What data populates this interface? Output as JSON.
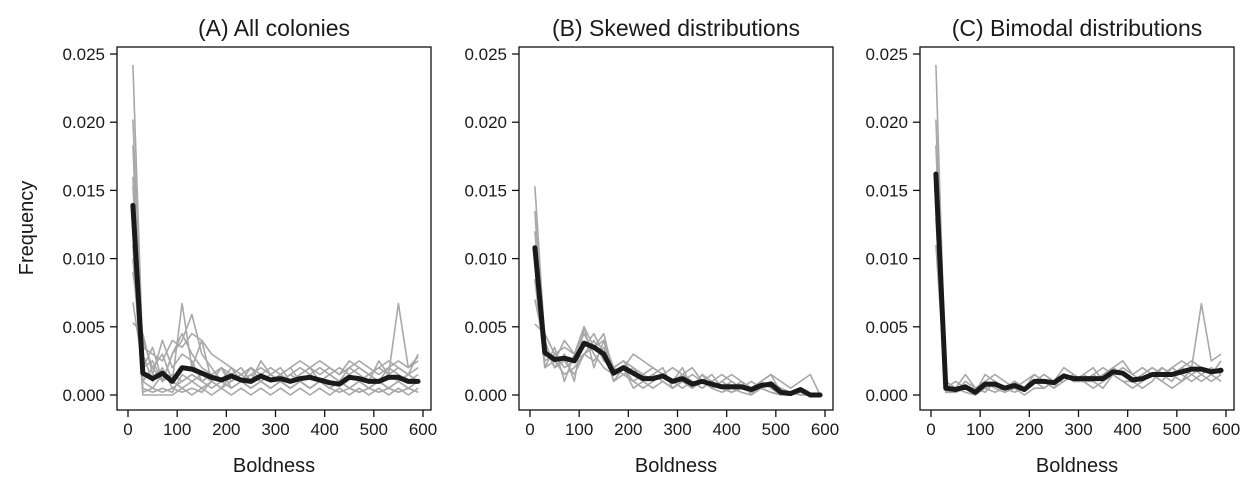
{
  "figure": {
    "ylabel": "Frequency"
  },
  "chart_data": [
    {
      "type": "line",
      "title": "(A) All colonies",
      "xlabel": "Boldness",
      "ylabel": "Frequency",
      "xlim": [
        0,
        600
      ],
      "ylim": [
        0,
        0.025
      ],
      "xticks": [
        0,
        100,
        200,
        300,
        400,
        500,
        600
      ],
      "yticks": [
        0.0,
        0.005,
        0.01,
        0.015,
        0.02,
        0.025
      ],
      "grid": false,
      "x": [
        10,
        30,
        50,
        70,
        90,
        110,
        130,
        150,
        170,
        190,
        210,
        230,
        250,
        270,
        290,
        310,
        330,
        350,
        370,
        390,
        410,
        430,
        450,
        470,
        490,
        510,
        530,
        550,
        570,
        590
      ],
      "mean": [
        0.0139,
        0.0016,
        0.0012,
        0.0016,
        0.001,
        0.002,
        0.0019,
        0.0016,
        0.0013,
        0.0011,
        0.0014,
        0.0011,
        0.001,
        0.0014,
        0.0011,
        0.0012,
        0.001,
        0.0012,
        0.0013,
        0.0011,
        0.0009,
        0.0008,
        0.0013,
        0.0012,
        0.001,
        0.001,
        0.0013,
        0.0013,
        0.001,
        0.001
      ],
      "colonies": [
        [
          0.0242,
          0.003,
          0.001,
          0.002,
          0.0005,
          0.001,
          0.0015,
          0.001,
          0.0005,
          0.001,
          0.0015,
          0.001,
          0.0005,
          0.001,
          0.0015,
          0.001,
          0.0005,
          0.001,
          0.0015,
          0.001,
          0.0005,
          0.001,
          0.0015,
          0.001,
          0.0005,
          0.001,
          0.002,
          0.0015,
          0.001,
          0.0015
        ],
        [
          0.0202,
          0.002,
          0.0035,
          0.001,
          0.003,
          0.0045,
          0.003,
          0.002,
          0.0015,
          0.002,
          0.001,
          0.0015,
          0.002,
          0.0015,
          0.001,
          0.0015,
          0.002,
          0.001,
          0.0015,
          0.002,
          0.0015,
          0.001,
          0.0015,
          0.002,
          0.0015,
          0.001,
          0.0015,
          0.002,
          0.0015,
          0.001
        ],
        [
          0.0183,
          0.001,
          0.0005,
          0.0015,
          0.001,
          0.0005,
          0.001,
          0.0015,
          0.001,
          0.0005,
          0.0015,
          0.002,
          0.001,
          0.0025,
          0.0015,
          0.002,
          0.001,
          0.0015,
          0.002,
          0.001,
          0.0015,
          0.001,
          0.002,
          0.0015,
          0.001,
          0.0025,
          0.0015,
          0.0067,
          0.002,
          0.0025
        ],
        [
          0.0153,
          0.004,
          0.002,
          0.003,
          0.001,
          0.0067,
          0.002,
          0.004,
          0.001,
          0.002,
          0.0005,
          0.001,
          0.0015,
          0.001,
          0.0005,
          0.001,
          0.0015,
          0.001,
          0.0005,
          0.001,
          0.0015,
          0.001,
          0.0005,
          0.001,
          0.0015,
          0.001,
          0.0005,
          0.001,
          0.0015,
          0.001
        ],
        [
          0.01,
          0.0005,
          0.0002,
          0.0005,
          0.0002,
          0.0015,
          0.001,
          0.0005,
          0.001,
          0.002,
          0.0015,
          0.001,
          0.002,
          0.0015,
          0.001,
          0.0015,
          0.002,
          0.0025,
          0.002,
          0.0015,
          0.002,
          0.0015,
          0.0025,
          0.002,
          0.0015,
          0.002,
          0.0025,
          0.002,
          0.0015,
          0.002
        ],
        [
          0.0068,
          0.002,
          0.0025,
          0.001,
          0.003,
          0.004,
          0.0059,
          0.003,
          0.002,
          0.001,
          0.002,
          0.001,
          0.0005,
          0.001,
          0.0005,
          0.001,
          0.0005,
          0.001,
          0.0005,
          0.001,
          0.0005,
          0.001,
          0.0005,
          0.001,
          0.0005,
          0.001,
          0.0005,
          0.001,
          0.0005,
          0.001
        ],
        [
          0.0053,
          0.0045,
          0.0015,
          0.004,
          0.002,
          0.003,
          0.0025,
          0.001,
          0.0015,
          0.001,
          0.0005,
          0.001,
          0.0015,
          0.001,
          0.0005,
          0.001,
          0.0005,
          0.001,
          0.0005,
          0.001,
          0.0005,
          0.001,
          0.0005,
          0.0002,
          0.0005,
          0.0002,
          0.0005,
          0.0002,
          0.0005,
          0.0002
        ],
        [
          0.012,
          0.0002,
          0.0005,
          0.0002,
          0.0005,
          0.0002,
          0.0005,
          0.0002,
          0.001,
          0.0005,
          0.001,
          0.0015,
          0.001,
          0.0015,
          0.002,
          0.0015,
          0.001,
          0.0015,
          0.002,
          0.0025,
          0.002,
          0.0015,
          0.002,
          0.0025,
          0.002,
          0.0015,
          0.002,
          0.0025,
          0.002,
          0.0028
        ],
        [
          0.009,
          0.0035,
          0.003,
          0.0025,
          0.004,
          0.0035,
          0.0045,
          0.004,
          0.003,
          0.0025,
          0.002,
          0.0015,
          0.002,
          0.001,
          0.0015,
          0.001,
          0.0015,
          0.001,
          0.0005,
          0.001,
          0.0005,
          0.0002,
          0.0005,
          0.0002,
          0.0005,
          0.0002,
          0.0005,
          0.0002,
          0.0005,
          0.0002
        ],
        [
          0.016,
          0.001,
          0.002,
          0.001,
          0.0015,
          0.001,
          0.0015,
          0.001,
          0.0015,
          0.001,
          0.0015,
          0.001,
          0.0015,
          0.002,
          0.0015,
          0.001,
          0.0015,
          0.002,
          0.0015,
          0.001,
          0.0015,
          0.002,
          0.0015,
          0.001,
          0.0015,
          0.002,
          0.0015,
          0.001,
          0.0015,
          0.003
        ],
        [
          0.011,
          0.0,
          0.0,
          0.0,
          0.0,
          0.0005,
          0.0,
          0.0005,
          0.0,
          0.0005,
          0.0,
          0.0005,
          0.0,
          0.0005,
          0.0,
          0.0005,
          0.0,
          0.0005,
          0.0,
          0.0005,
          0.0,
          0.0005,
          0.0,
          0.0005,
          0.0,
          0.0005,
          0.0,
          0.0005,
          0.0,
          0.0005
        ]
      ]
    },
    {
      "type": "line",
      "title": "(B) Skewed distributions",
      "xlabel": "Boldness",
      "xlim": [
        0,
        600
      ],
      "ylim": [
        0,
        0.025
      ],
      "xticks": [
        0,
        100,
        200,
        300,
        400,
        500,
        600
      ],
      "yticks": [
        0.0,
        0.005,
        0.01,
        0.015,
        0.02,
        0.025
      ],
      "grid": false,
      "x": [
        10,
        30,
        50,
        70,
        90,
        110,
        130,
        150,
        170,
        190,
        210,
        230,
        250,
        270,
        290,
        310,
        330,
        350,
        370,
        390,
        410,
        430,
        450,
        470,
        490,
        510,
        530,
        550,
        570,
        590
      ],
      "mean": [
        0.0108,
        0.0031,
        0.0026,
        0.0027,
        0.0025,
        0.0038,
        0.0035,
        0.003,
        0.0016,
        0.002,
        0.0016,
        0.0012,
        0.0012,
        0.0014,
        0.001,
        0.0012,
        0.0008,
        0.001,
        0.0008,
        0.0006,
        0.0006,
        0.0006,
        0.0004,
        0.0007,
        0.0008,
        0.0002,
        0.0001,
        0.0004,
        0.0,
        0.0
      ],
      "colonies": [
        [
          0.0153,
          0.004,
          0.002,
          0.003,
          0.001,
          0.005,
          0.002,
          0.004,
          0.001,
          0.002,
          0.0005,
          0.001,
          0.0015,
          0.001,
          0.0005,
          0.001,
          0.0015,
          0.001,
          0.0005,
          0.001,
          0.0015,
          0.001,
          0.0005,
          0.001,
          0.0015,
          0.001,
          0.0005,
          0.001,
          0.0015,
          0.0
        ],
        [
          0.0135,
          0.002,
          0.0035,
          0.001,
          0.003,
          0.0045,
          0.003,
          0.002,
          0.0015,
          0.002,
          0.001,
          0.0015,
          0.002,
          0.0015,
          0.001,
          0.0015,
          0.002,
          0.001,
          0.0015,
          0.0005,
          0.001,
          0.0005,
          0.0002,
          0.0005,
          0.0002,
          0.0,
          0.0002,
          0.0,
          0.0,
          0.0
        ],
        [
          0.012,
          0.003,
          0.0025,
          0.004,
          0.003,
          0.0035,
          0.0045,
          0.003,
          0.002,
          0.0025,
          0.002,
          0.0015,
          0.001,
          0.0015,
          0.001,
          0.0005,
          0.001,
          0.0005,
          0.001,
          0.0005,
          0.0002,
          0.0005,
          0.0002,
          0.0005,
          0.001,
          0.0002,
          0.0,
          0.0005,
          0.0,
          0.0
        ],
        [
          0.01,
          0.0025,
          0.003,
          0.002,
          0.0025,
          0.003,
          0.0035,
          0.0045,
          0.0015,
          0.002,
          0.003,
          0.0025,
          0.002,
          0.0015,
          0.002,
          0.0015,
          0.001,
          0.0005,
          0.001,
          0.0015,
          0.001,
          0.0005,
          0.001,
          0.0005,
          0.001,
          0.0005,
          0.0002,
          0.0005,
          0.0,
          0.0
        ],
        [
          0.007,
          0.0035,
          0.002,
          0.0025,
          0.0015,
          0.003,
          0.004,
          0.0025,
          0.002,
          0.0015,
          0.001,
          0.0005,
          0.001,
          0.0015,
          0.001,
          0.002,
          0.0005,
          0.0015,
          0.0005,
          0.001,
          0.0005,
          0.001,
          0.0,
          0.001,
          0.0005,
          0.0,
          0.0002,
          0.0,
          0.0,
          0.0
        ],
        [
          0.0052,
          0.0045,
          0.003,
          0.0035,
          0.003,
          0.005,
          0.0035,
          0.004,
          0.002,
          0.0025,
          0.0015,
          0.001,
          0.0005,
          0.001,
          0.0005,
          0.001,
          0.0005,
          0.0015,
          0.001,
          0.0005,
          0.0002,
          0.0005,
          0.0005,
          0.001,
          0.0015,
          0.0002,
          0.0,
          0.0005,
          0.0,
          0.0
        ],
        [
          0.0085,
          0.002,
          0.0025,
          0.0015,
          0.002,
          0.003,
          0.0025,
          0.0035,
          0.001,
          0.0015,
          0.002,
          0.001,
          0.0015,
          0.002,
          0.0005,
          0.001,
          0.0005,
          0.001,
          0.0005,
          0.0002,
          0.0005,
          0.0002,
          0.0,
          0.0005,
          0.0002,
          0.0,
          0.0,
          0.0002,
          0.0,
          0.0
        ]
      ]
    },
    {
      "type": "line",
      "title": "(C) Bimodal distributions",
      "xlabel": "Boldness",
      "xlim": [
        0,
        600
      ],
      "ylim": [
        0,
        0.025
      ],
      "xticks": [
        0,
        100,
        200,
        300,
        400,
        500,
        600
      ],
      "yticks": [
        0.0,
        0.005,
        0.01,
        0.015,
        0.02,
        0.025
      ],
      "grid": false,
      "x": [
        10,
        30,
        50,
        70,
        90,
        110,
        130,
        150,
        170,
        190,
        210,
        230,
        250,
        270,
        290,
        310,
        330,
        350,
        370,
        390,
        410,
        430,
        450,
        470,
        490,
        510,
        530,
        550,
        570,
        590
      ],
      "mean": [
        0.0162,
        0.0005,
        0.0004,
        0.0006,
        0.0002,
        0.0008,
        0.0008,
        0.0005,
        0.0007,
        0.0004,
        0.001,
        0.001,
        0.0009,
        0.0014,
        0.0012,
        0.0012,
        0.0012,
        0.0012,
        0.0017,
        0.0016,
        0.0011,
        0.0012,
        0.0015,
        0.0015,
        0.0015,
        0.0017,
        0.0019,
        0.0019,
        0.0017,
        0.0018
      ],
      "colonies": [
        [
          0.0242,
          0.001,
          0.0005,
          0.0015,
          0.0005,
          0.001,
          0.0015,
          0.001,
          0.0005,
          0.001,
          0.0015,
          0.001,
          0.0005,
          0.001,
          0.0015,
          0.001,
          0.0005,
          0.001,
          0.0015,
          0.001,
          0.0005,
          0.001,
          0.0015,
          0.001,
          0.0005,
          0.001,
          0.002,
          0.0015,
          0.001,
          0.0015
        ],
        [
          0.0202,
          0.0005,
          0.001,
          0.0005,
          0.0002,
          0.0015,
          0.001,
          0.0005,
          0.001,
          0.0005,
          0.001,
          0.0015,
          0.001,
          0.002,
          0.0015,
          0.001,
          0.0015,
          0.002,
          0.0015,
          0.002,
          0.0015,
          0.001,
          0.0015,
          0.002,
          0.0015,
          0.002,
          0.0025,
          0.002,
          0.0015,
          0.002
        ],
        [
          0.0183,
          0.0002,
          0.0005,
          0.0002,
          0.0,
          0.0005,
          0.0002,
          0.0005,
          0.001,
          0.0005,
          0.001,
          0.0005,
          0.001,
          0.0015,
          0.001,
          0.0015,
          0.001,
          0.0015,
          0.002,
          0.0015,
          0.001,
          0.0015,
          0.002,
          0.0015,
          0.002,
          0.0025,
          0.002,
          0.0067,
          0.0025,
          0.003
        ],
        [
          0.013,
          0.0005,
          0.0002,
          0.001,
          0.0005,
          0.0002,
          0.001,
          0.0005,
          0.0002,
          0.0005,
          0.001,
          0.0015,
          0.001,
          0.0015,
          0.001,
          0.0015,
          0.002,
          0.001,
          0.002,
          0.0025,
          0.0015,
          0.002,
          0.0015,
          0.001,
          0.002,
          0.0015,
          0.001,
          0.0015,
          0.002,
          0.0015
        ],
        [
          0.011,
          0.0002,
          0.0002,
          0.0005,
          0.0,
          0.001,
          0.0005,
          0.0002,
          0.0005,
          0.0,
          0.0005,
          0.0005,
          0.001,
          0.001,
          0.0015,
          0.001,
          0.001,
          0.0005,
          0.0015,
          0.001,
          0.001,
          0.0005,
          0.001,
          0.002,
          0.0015,
          0.001,
          0.0015,
          0.001,
          0.0015,
          0.001
        ],
        [
          0.015,
          0.0005,
          0.0002,
          0.0005,
          0.0002,
          0.0005,
          0.001,
          0.0005,
          0.001,
          0.0005,
          0.0015,
          0.001,
          0.0005,
          0.0015,
          0.001,
          0.001,
          0.0015,
          0.001,
          0.002,
          0.0015,
          0.001,
          0.0015,
          0.002,
          0.0015,
          0.001,
          0.002,
          0.0015,
          0.002,
          0.0015,
          0.0025
        ]
      ]
    }
  ]
}
